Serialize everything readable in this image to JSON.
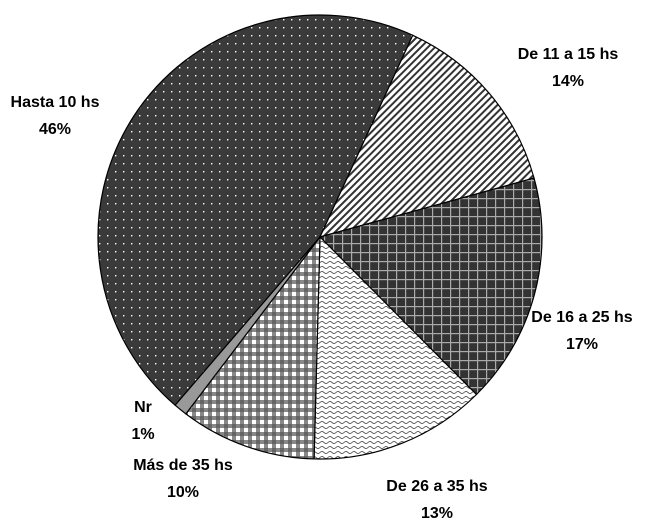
{
  "chart_data": {
    "type": "pie",
    "categories": [
      "Hasta 10 hs",
      "De 11 a 15 hs",
      "De 16 a 25 hs",
      "De 26 a 35 hs",
      "Más de 35 hs",
      "Nr"
    ],
    "values": [
      46,
      14,
      17,
      13,
      10,
      1
    ],
    "value_labels": [
      "46%",
      "14%",
      "17%",
      "13%",
      "10%",
      "1%"
    ]
  }
}
